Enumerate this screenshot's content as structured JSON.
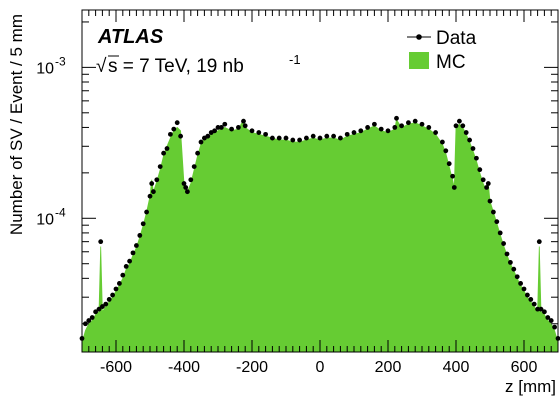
{
  "chart_data": {
    "type": "area",
    "xlabel": "z [mm]",
    "ylabel": "Number of SV / Event / 5 mm",
    "experiment_label": "ATLAS",
    "energy_label": "s = 7 TeV, 19 nb",
    "energy_sqrt": "√",
    "lumi_superscript": "-1",
    "x_range": [
      -700,
      700
    ],
    "y_range": [
      1.3e-05,
      0.0024
    ],
    "y_scale": "log",
    "grid": false,
    "legend_position": "top-right",
    "x_ticks": [
      -600,
      -400,
      -200,
      0,
      200,
      400,
      600
    ],
    "x_tick_labels": [
      "-600",
      "-400",
      "-200",
      "0",
      "200",
      "400",
      "600"
    ],
    "y_ticks": [
      {
        "value": 0.0001,
        "base": "10",
        "exp": "-4"
      },
      {
        "value": 0.001,
        "base": "10",
        "exp": "-3"
      }
    ],
    "colors": {
      "mc_fill": "#66cc33",
      "data_marker": "#000000"
    },
    "series": [
      {
        "name": "MC",
        "style": "filled-histogram",
        "x": [
          -700,
          -690,
          -680,
          -670,
          -660,
          -650,
          -645,
          -640,
          -630,
          -620,
          -610,
          -600,
          -590,
          -580,
          -570,
          -560,
          -550,
          -540,
          -530,
          -520,
          -510,
          -500,
          -495,
          -490,
          -480,
          -470,
          -460,
          -450,
          -440,
          -430,
          -420,
          -410,
          -400,
          -395,
          -390,
          -380,
          -370,
          -360,
          -350,
          -340,
          -330,
          -320,
          -310,
          -300,
          -290,
          -280,
          -260,
          -240,
          -225,
          -220,
          -200,
          -180,
          -160,
          -140,
          -120,
          -100,
          -80,
          -60,
          -40,
          -20,
          0,
          20,
          40,
          60,
          80,
          100,
          120,
          140,
          160,
          180,
          200,
          220,
          225,
          240,
          260,
          280,
          300,
          320,
          340,
          360,
          370,
          380,
          390,
          395,
          400,
          410,
          420,
          430,
          440,
          450,
          460,
          470,
          480,
          490,
          495,
          500,
          510,
          520,
          530,
          540,
          550,
          560,
          570,
          580,
          590,
          600,
          610,
          620,
          630,
          640,
          645,
          650,
          660,
          670,
          680,
          690,
          700
        ],
        "values": [
          1.5e-05,
          1.8e-05,
          2e-05,
          2.1e-05,
          2.3e-05,
          2.4e-05,
          6.5e-05,
          2.4e-05,
          2.6e-05,
          2.8e-05,
          3e-05,
          3.3e-05,
          3.6e-05,
          4e-05,
          4.6e-05,
          5e-05,
          5.7e-05,
          6.4e-05,
          7.5e-05,
          9e-05,
          0.00011,
          0.00014,
          0.00018,
          0.00015,
          0.000175,
          0.00021,
          0.00026,
          0.0003,
          0.00034,
          0.00038,
          0.0004,
          0.00038,
          0.00017,
          0.00016,
          0.00015,
          0.00017,
          0.00021,
          0.00026,
          0.00031,
          0.00034,
          0.00035,
          0.00036,
          0.00037,
          0.00038,
          0.00039,
          0.0004,
          0.00038,
          0.00039,
          0.00045,
          0.0004,
          0.00037,
          0.00036,
          0.00035,
          0.00034,
          0.00033,
          0.00033,
          0.00032,
          0.00032,
          0.00033,
          0.00034,
          0.00033,
          0.00034,
          0.00034,
          0.00033,
          0.00035,
          0.00036,
          0.00037,
          0.00039,
          0.00041,
          0.00038,
          0.00037,
          0.00039,
          0.00045,
          0.0004,
          0.00042,
          0.00043,
          0.00041,
          0.00039,
          0.00036,
          0.00031,
          0.00027,
          0.00022,
          0.00018,
          0.00016,
          0.0004,
          0.00042,
          0.0004,
          0.00036,
          0.00032,
          0.00028,
          0.00024,
          0.0002,
          0.00017,
          0.00015,
          0.00017,
          0.00013,
          0.00011,
          9.3e-05,
          7.8e-05,
          6.6e-05,
          5.7e-05,
          5e-05,
          4.5e-05,
          4e-05,
          3.6e-05,
          3.3e-05,
          3e-05,
          2.8e-05,
          2.6e-05,
          2.4e-05,
          6.5e-05,
          2.4e-05,
          2.3e-05,
          2.1e-05,
          2e-05,
          1.8e-05,
          1.5e-05
        ]
      },
      {
        "name": "Data",
        "style": "points",
        "x": [
          -700,
          -690,
          -680,
          -670,
          -660,
          -650,
          -645,
          -640,
          -630,
          -620,
          -610,
          -600,
          -590,
          -580,
          -570,
          -560,
          -550,
          -540,
          -530,
          -520,
          -510,
          -500,
          -495,
          -490,
          -480,
          -470,
          -460,
          -450,
          -440,
          -430,
          -420,
          -410,
          -400,
          -395,
          -390,
          -380,
          -370,
          -360,
          -350,
          -340,
          -330,
          -320,
          -310,
          -300,
          -290,
          -280,
          -260,
          -240,
          -225,
          -220,
          -200,
          -180,
          -160,
          -140,
          -120,
          -100,
          -80,
          -60,
          -40,
          -20,
          0,
          20,
          40,
          60,
          80,
          100,
          120,
          140,
          160,
          180,
          200,
          220,
          225,
          240,
          260,
          280,
          300,
          320,
          340,
          360,
          370,
          380,
          390,
          395,
          400,
          410,
          420,
          430,
          440,
          450,
          460,
          470,
          480,
          490,
          495,
          500,
          510,
          520,
          530,
          540,
          550,
          560,
          570,
          580,
          590,
          600,
          610,
          620,
          630,
          640,
          645,
          650,
          660,
          670,
          680,
          690,
          700
        ],
        "values": [
          1.6e-05,
          2e-05,
          2.1e-05,
          2.2e-05,
          2.4e-05,
          2.5e-05,
          7e-05,
          2.6e-05,
          2.7e-05,
          2.9e-05,
          3.1e-05,
          3.4e-05,
          3.7e-05,
          4.2e-05,
          4.8e-05,
          5.2e-05,
          5.9e-05,
          6.6e-05,
          7.7e-05,
          9.2e-05,
          0.00011,
          0.00014,
          0.00017,
          0.00015,
          0.00018,
          0.00022,
          0.00027,
          0.00029,
          0.00036,
          0.00039,
          0.00043,
          0.00035,
          0.00017,
          0.00016,
          0.00015,
          0.00018,
          0.00022,
          0.00027,
          0.00032,
          0.00034,
          0.00035,
          0.00037,
          0.00038,
          0.0004,
          0.0004,
          0.00042,
          0.00039,
          0.0004,
          0.00044,
          0.00041,
          0.00038,
          0.00037,
          0.00036,
          0.00034,
          0.00034,
          0.00034,
          0.00033,
          0.00033,
          0.00034,
          0.00035,
          0.00034,
          0.00035,
          0.00035,
          0.00034,
          0.00036,
          0.00037,
          0.00038,
          0.0004,
          0.00042,
          0.00039,
          0.00038,
          0.0004,
          0.00046,
          0.00041,
          0.00043,
          0.00044,
          0.00042,
          0.0004,
          0.00037,
          0.00032,
          0.00028,
          0.00023,
          0.00019,
          0.00016,
          0.00041,
          0.00044,
          0.00041,
          0.00037,
          0.00033,
          0.00029,
          0.00025,
          0.00021,
          0.00018,
          0.00016,
          0.00017,
          0.00013,
          0.00011,
          9.5e-05,
          8e-05,
          6.8e-05,
          5.8e-05,
          5.1e-05,
          4.6e-05,
          4.1e-05,
          3.7e-05,
          3.4e-05,
          3.1e-05,
          2.9e-05,
          2.7e-05,
          2.5e-05,
          7e-05,
          2.5e-05,
          2.4e-05,
          2.2e-05,
          2.1e-05,
          1.9e-05,
          1.6e-05
        ]
      }
    ]
  }
}
